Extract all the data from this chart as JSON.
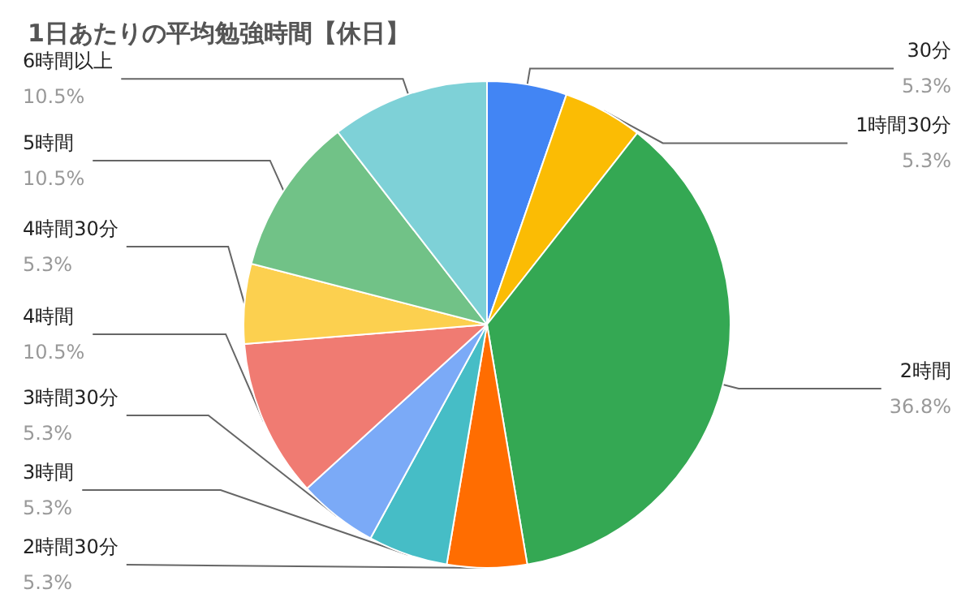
{
  "chart_data": {
    "type": "pie",
    "title": "1日あたりの平均勉強時間【休日】",
    "categories": [
      "30分",
      "1時間30分",
      "2時間",
      "2時間30分",
      "3時間",
      "3時間30分",
      "4時間",
      "4時間30分",
      "5時間",
      "6時間以上"
    ],
    "values": [
      5.3,
      5.3,
      36.8,
      5.3,
      5.3,
      5.3,
      10.5,
      5.3,
      10.5,
      10.5
    ],
    "value_labels": [
      "5.3%",
      "5.3%",
      "36.8%",
      "5.3%",
      "5.3%",
      "5.3%",
      "10.5%",
      "5.3%",
      "10.5%",
      "10.5%"
    ],
    "colors": [
      "#4285f4",
      "#fbbc04",
      "#34a853",
      "#ff6d01",
      "#46bdc6",
      "#7baaf7",
      "#f07b72",
      "#fcd04f",
      "#71c287",
      "#7ed1d7"
    ],
    "legend": false
  }
}
